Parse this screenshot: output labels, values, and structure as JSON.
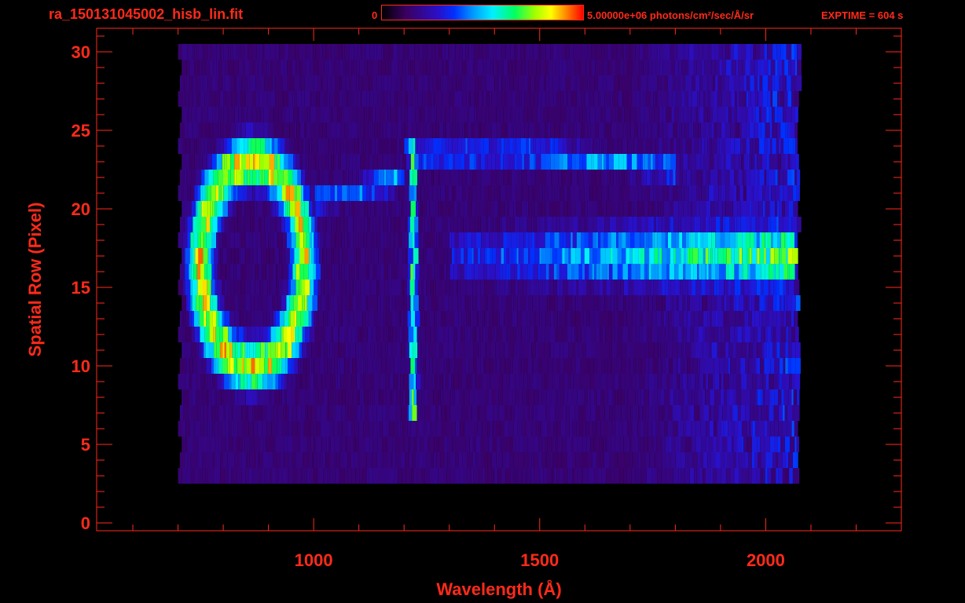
{
  "header": {
    "file_name": "ra_150131045002_hisb_lin.fit",
    "colorbar_min_label": "0",
    "colorbar_max_label": "5.00000e+06 photons/cm²/sec/Å/sr",
    "exptime_label": "EXPTIME = 604 s"
  },
  "colors": {
    "axis_text": "#ff2a1a",
    "background": "#000000"
  },
  "chart_data": {
    "type": "heatmap",
    "title": "ra_150131045002_hisb_lin.fit",
    "xlabel": "Wavelength (Å)",
    "ylabel": "Spatial Row (Pixel)",
    "xlim": [
      520,
      2300
    ],
    "ylim": [
      -0.5,
      31.5
    ],
    "x_ticks": [
      1000,
      1500,
      2000
    ],
    "y_ticks": [
      0,
      5,
      10,
      15,
      20,
      25,
      30
    ],
    "colorbar": {
      "min": 0,
      "max": 5000000,
      "units": "photons/cm²/sec/Å/sr"
    },
    "data_x_range": [
      700,
      2070
    ],
    "data_rows": [
      3,
      30
    ],
    "features": [
      {
        "name": "ring",
        "center_x": 860,
        "center_y": 16.5,
        "rx_A": 115,
        "ry_rows": 6.5,
        "peak": 0.9
      },
      {
        "name": "Lyman-alpha line",
        "x": 1216,
        "rows": [
          7,
          24
        ],
        "peak": 0.75
      },
      {
        "name": "continuum band",
        "x_range": [
          1300,
          2060
        ],
        "rows": [
          14,
          20
        ],
        "peak": 0.78
      },
      {
        "name": "upper arc",
        "x_range": [
          1200,
          1800
        ],
        "rows": [
          22,
          25
        ],
        "peak": 0.5
      }
    ],
    "grid": false
  }
}
